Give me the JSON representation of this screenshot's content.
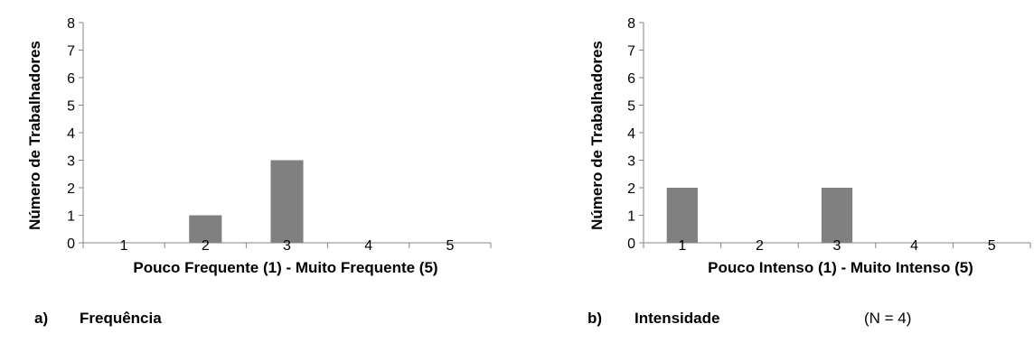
{
  "chart_data": [
    {
      "type": "bar",
      "categories": [
        "1",
        "2",
        "3",
        "4",
        "5"
      ],
      "values": [
        0,
        1,
        3,
        0,
        0
      ],
      "ylim": [
        0,
        8
      ],
      "yticks": [
        "0",
        "1",
        "2",
        "3",
        "4",
        "5",
        "6",
        "7",
        "8"
      ],
      "xlabel": "Pouco Frequente (1) - Muito Frequente (5)",
      "ylabel": "Número de Trabalhadores",
      "caption_letter": "a)",
      "caption_title": "Frequência",
      "bar_color": "#808080",
      "grid": false
    },
    {
      "type": "bar",
      "categories": [
        "1",
        "2",
        "3",
        "4",
        "5"
      ],
      "values": [
        2,
        0,
        2,
        0,
        0
      ],
      "ylim": [
        0,
        8
      ],
      "yticks": [
        "0",
        "1",
        "2",
        "3",
        "4",
        "5",
        "6",
        "7",
        "8"
      ],
      "xlabel": "Pouco Intenso (1) - Muito Intenso (5)",
      "ylabel": "Número de Trabalhadores",
      "caption_letter": "b)",
      "caption_title": "Intensidade",
      "caption_note": "(N = 4)",
      "bar_color": "#808080",
      "grid": false
    }
  ]
}
